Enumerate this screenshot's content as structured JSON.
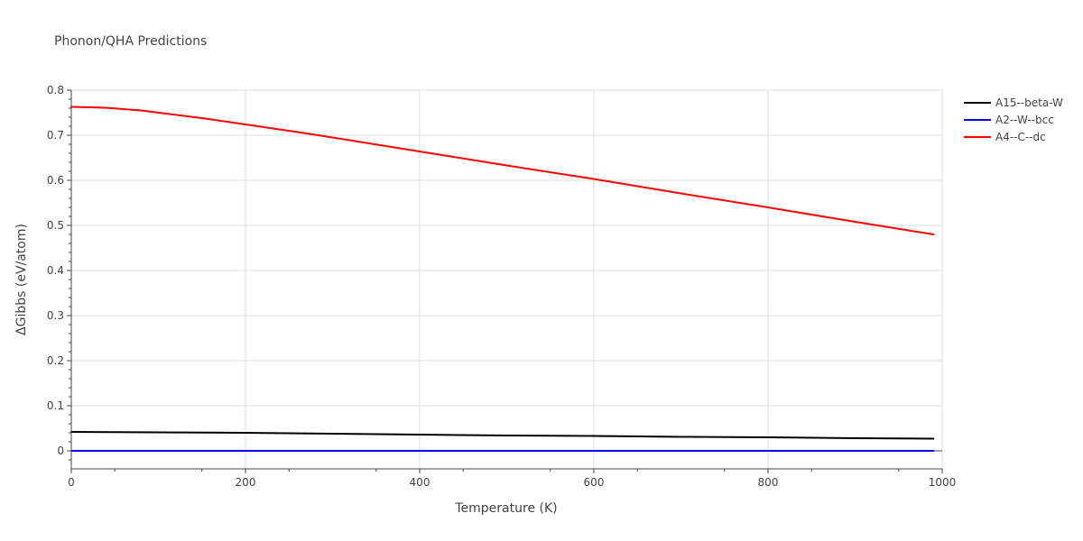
{
  "chart_data": {
    "type": "line",
    "title": "Phonon/QHA Predictions",
    "xlabel": "Temperature (K)",
    "ylabel": "ΔGibbs (eV/atom)",
    "xlim": [
      0,
      1000
    ],
    "ylim": [
      -0.04,
      0.8
    ],
    "x_ticks": [
      0,
      200,
      400,
      600,
      800,
      1000
    ],
    "y_ticks": [
      0,
      0.1,
      0.2,
      0.3,
      0.4,
      0.5,
      0.6,
      0.7,
      0.8
    ],
    "x_tick_labels": [
      "0",
      "200",
      "400",
      "600",
      "800",
      "1000"
    ],
    "y_tick_labels": [
      "0",
      "0.1",
      "0.2",
      "0.3",
      "0.4",
      "0.5",
      "0.6",
      "0.7",
      "0.8"
    ],
    "grid": true,
    "legend_position": "top-right",
    "series": [
      {
        "name": "A15--beta-W",
        "color": "#000000",
        "x": [
          0,
          100,
          200,
          300,
          400,
          500,
          600,
          700,
          800,
          900,
          990
        ],
        "y": [
          0.042,
          0.041,
          0.04,
          0.038,
          0.036,
          0.034,
          0.033,
          0.031,
          0.03,
          0.028,
          0.027
        ]
      },
      {
        "name": "A2--W--bcc",
        "color": "#0000ff",
        "x": [
          0,
          990
        ],
        "y": [
          0,
          0
        ]
      },
      {
        "name": "A4--C--dc",
        "color": "#ff0000",
        "x": [
          0,
          40,
          80,
          150,
          200,
          260,
          300,
          400,
          500,
          600,
          700,
          800,
          900,
          990
        ],
        "y": [
          0.763,
          0.761,
          0.755,
          0.738,
          0.724,
          0.707,
          0.695,
          0.664,
          0.633,
          0.603,
          0.571,
          0.54,
          0.508,
          0.48
        ]
      }
    ]
  }
}
